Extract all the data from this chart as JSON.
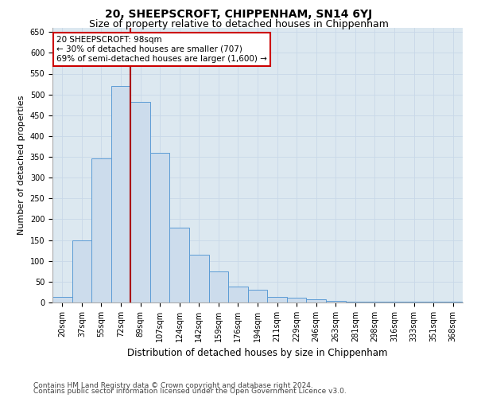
{
  "title": "20, SHEEPSCROFT, CHIPPENHAM, SN14 6YJ",
  "subtitle": "Size of property relative to detached houses in Chippenham",
  "xlabel": "Distribution of detached houses by size in Chippenham",
  "ylabel": "Number of detached properties",
  "categories": [
    "20sqm",
    "37sqm",
    "55sqm",
    "72sqm",
    "89sqm",
    "107sqm",
    "124sqm",
    "142sqm",
    "159sqm",
    "176sqm",
    "194sqm",
    "211sqm",
    "229sqm",
    "246sqm",
    "263sqm",
    "281sqm",
    "298sqm",
    "316sqm",
    "333sqm",
    "351sqm",
    "368sqm"
  ],
  "values": [
    13,
    150,
    347,
    520,
    483,
    360,
    180,
    115,
    75,
    38,
    30,
    13,
    11,
    8,
    4,
    2,
    1,
    1,
    1,
    1,
    1
  ],
  "bar_color": "#ccdcec",
  "bar_edge_color": "#5b9bd5",
  "ylim": [
    0,
    660
  ],
  "yticks": [
    0,
    50,
    100,
    150,
    200,
    250,
    300,
    350,
    400,
    450,
    500,
    550,
    600,
    650
  ],
  "red_line_x": 3.5,
  "red_line_color": "#aa0000",
  "annotation_text_line1": "20 SHEEPSCROFT: 98sqm",
  "annotation_text_line2": "← 30% of detached houses are smaller (707)",
  "annotation_text_line3": "69% of semi-detached houses are larger (1,600) →",
  "annotation_box_facecolor": "#ffffff",
  "annotation_box_edgecolor": "#cc0000",
  "grid_color": "#c8d8e8",
  "bg_color": "#ffffff",
  "plot_bg_color": "#dce8f0",
  "footnote_line1": "Contains HM Land Registry data © Crown copyright and database right 2024.",
  "footnote_line2": "Contains public sector information licensed under the Open Government Licence v3.0.",
  "title_fontsize": 10,
  "subtitle_fontsize": 9,
  "xlabel_fontsize": 8.5,
  "ylabel_fontsize": 8,
  "tick_fontsize": 7,
  "annot_fontsize": 7.5,
  "footnote_fontsize": 6.5
}
